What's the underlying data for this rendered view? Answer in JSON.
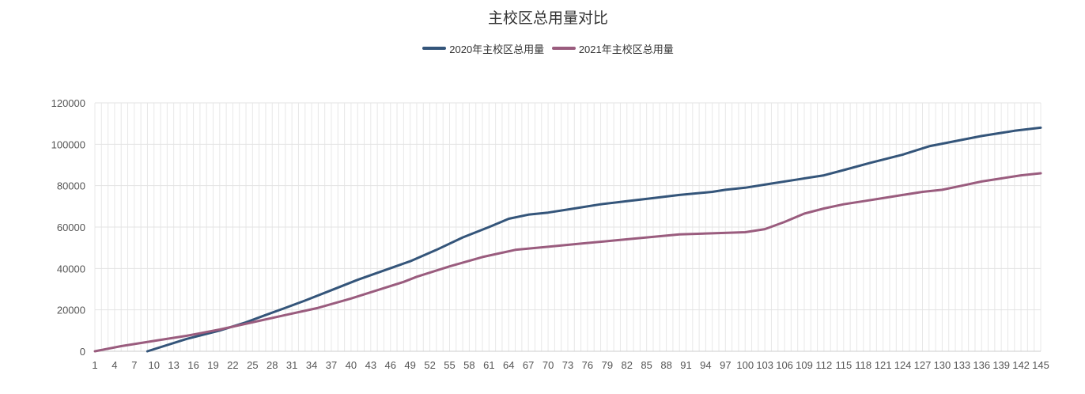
{
  "chart_data": {
    "type": "line",
    "title": "主校区总用量对比",
    "legend_position": "top-center",
    "grid": true,
    "xlabel": "",
    "ylabel": "",
    "ylim": [
      0,
      120000
    ],
    "y_ticks": [
      0,
      20000,
      40000,
      60000,
      80000,
      100000,
      120000
    ],
    "x_range": [
      1,
      145
    ],
    "x_tick_labels": [
      "1",
      "4",
      "7",
      "10",
      "13",
      "16",
      "19",
      "22",
      "25",
      "28",
      "31",
      "34",
      "37",
      "40",
      "43",
      "46",
      "49",
      "52",
      "55",
      "58",
      "61",
      "64",
      "67",
      "70",
      "73",
      "76",
      "79",
      "82",
      "85",
      "88",
      "91",
      "94",
      "97",
      "100",
      "103",
      "106",
      "109",
      "112",
      "115",
      "118",
      "121",
      "124",
      "127",
      "130",
      "133",
      "136",
      "139",
      "142",
      "145"
    ],
    "series": [
      {
        "name": "2020年主校区总用量",
        "color": "#34557a",
        "x": [
          9,
          15,
          20,
          24,
          27,
          30,
          33,
          37,
          41,
          45,
          49,
          53,
          57,
          61,
          64,
          67,
          70,
          74,
          78,
          82,
          86,
          90,
          95,
          97,
          100,
          104,
          108,
          112,
          115,
          119,
          124,
          128,
          132,
          136,
          141,
          145
        ],
        "y": [
          0,
          6000,
          10000,
          14000,
          17500,
          21000,
          24500,
          29500,
          34500,
          39000,
          43500,
          49000,
          55000,
          60000,
          64000,
          66000,
          67000,
          69000,
          71000,
          72500,
          74000,
          75500,
          77000,
          78000,
          79000,
          81000,
          83000,
          85000,
          87500,
          91000,
          95000,
          99000,
          101500,
          104000,
          106500,
          108000
        ]
      },
      {
        "name": "2021年主校区总用量",
        "color": "#9a5c7e",
        "x": [
          1,
          5,
          10,
          15,
          20,
          25,
          30,
          35,
          40,
          45,
          48,
          50,
          55,
          60,
          65,
          70,
          75,
          80,
          85,
          90,
          95,
          100,
          103,
          106,
          109,
          112,
          115,
          118,
          121,
          124,
          127,
          130,
          133,
          136,
          139,
          142,
          145
        ],
        "y": [
          0,
          2500,
          5000,
          7500,
          10500,
          14000,
          17500,
          21000,
          25500,
          30500,
          33500,
          36000,
          41000,
          45500,
          49000,
          50500,
          52000,
          53500,
          55000,
          56500,
          57000,
          57500,
          59000,
          62500,
          66500,
          69000,
          71000,
          72500,
          74000,
          75500,
          77000,
          78000,
          80000,
          82000,
          83500,
          85000,
          86000
        ]
      }
    ]
  }
}
